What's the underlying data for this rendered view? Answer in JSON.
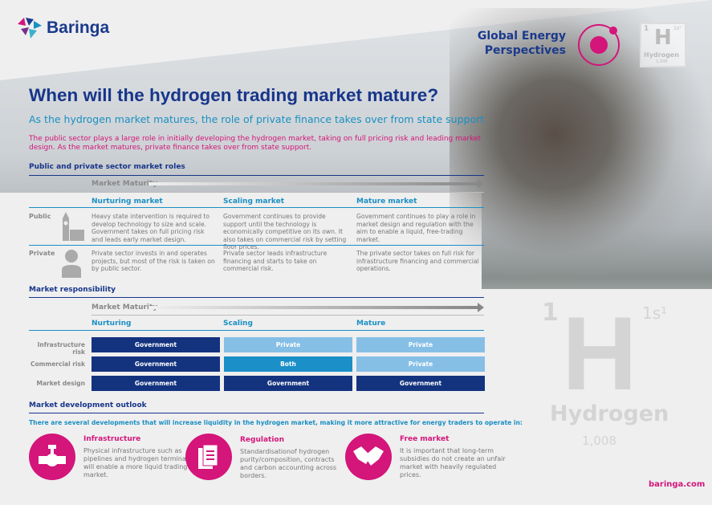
{
  "brand": {
    "logo": "Baringa",
    "series": "Global Energy Perspectives",
    "url": "baringa.com"
  },
  "element_tile": {
    "number": "1",
    "symbol": "H",
    "orbital": "1s¹",
    "name": "Hydrogen",
    "mass": "1,008"
  },
  "title": "When will the hydrogen trading market mature?",
  "subtitle": "As the hydrogen market matures, the role of private finance takes over from state support",
  "intro": "The public sector plays a large role in initially developing the hydrogen market, taking on full pricing risk and leading market design. As the market matures, private finance takes over from state support.",
  "roles": {
    "heading": "Public and private sector market roles",
    "maturity_label": "Market Maturity",
    "columns": [
      "Nurturing market",
      "Scaling market",
      "Mature market"
    ],
    "rows": [
      {
        "label": "Public",
        "icon": "big-ben-icon",
        "cells": [
          "Heavy state intervention is required to develop technology to size and scale. Government takes on full pricing risk and leads early market design.",
          "Government continues to provide support until the technology is economically competitive on its own. It also takes on commercial risk by setting floor prices.",
          "Government continues to play a role in market design and regulation with the aim to enable a liquid, free-trading market."
        ]
      },
      {
        "label": "Private",
        "icon": "person-icon",
        "cells": [
          "Private sector invests in and operates projects, but most of the risk is taken on by public sector.",
          "Private sector leads infrastructure financing and starts to take on commercial risk.",
          "The private sector takes on full risk for infrastructure financing and commercial operations."
        ]
      }
    ]
  },
  "responsibility": {
    "heading": "Market responsibility",
    "maturity_label": "Market Maturity",
    "columns": [
      "Nurturing",
      "Scaling",
      "Mature"
    ],
    "rows": [
      {
        "label": "Infrastructure risk",
        "values": [
          "Government",
          "Private",
          "Private"
        ]
      },
      {
        "label": "Commercial risk",
        "values": [
          "Government",
          "Both",
          "Private"
        ]
      },
      {
        "label": "Market design",
        "values": [
          "Government",
          "Government",
          "Government"
        ]
      }
    ],
    "colors": {
      "Government": "#14337f",
      "Private": "#86bfe6",
      "Both": "#1a8fc8"
    }
  },
  "outlook": {
    "heading": "Market development outlook",
    "lead": "There are several developments that will increase liquidity in the hydrogen market, making it more attractive for energy traders to operate in:",
    "items": [
      {
        "title": "Infrastructure",
        "icon": "pipeline-valve-icon",
        "text": "Physical infrastructure such as pipelines and hydrogen terminals will enable a more liquid trading market."
      },
      {
        "title": "Regulation",
        "icon": "documents-icon",
        "text": "Standardisationof hydrogen purity/composition, contracts and carbon accounting across borders."
      },
      {
        "title": "Free market",
        "icon": "handshake-icon",
        "text": "It is important that long-term subsidies do not create an unfair market with heavily regulated prices."
      }
    ]
  }
}
